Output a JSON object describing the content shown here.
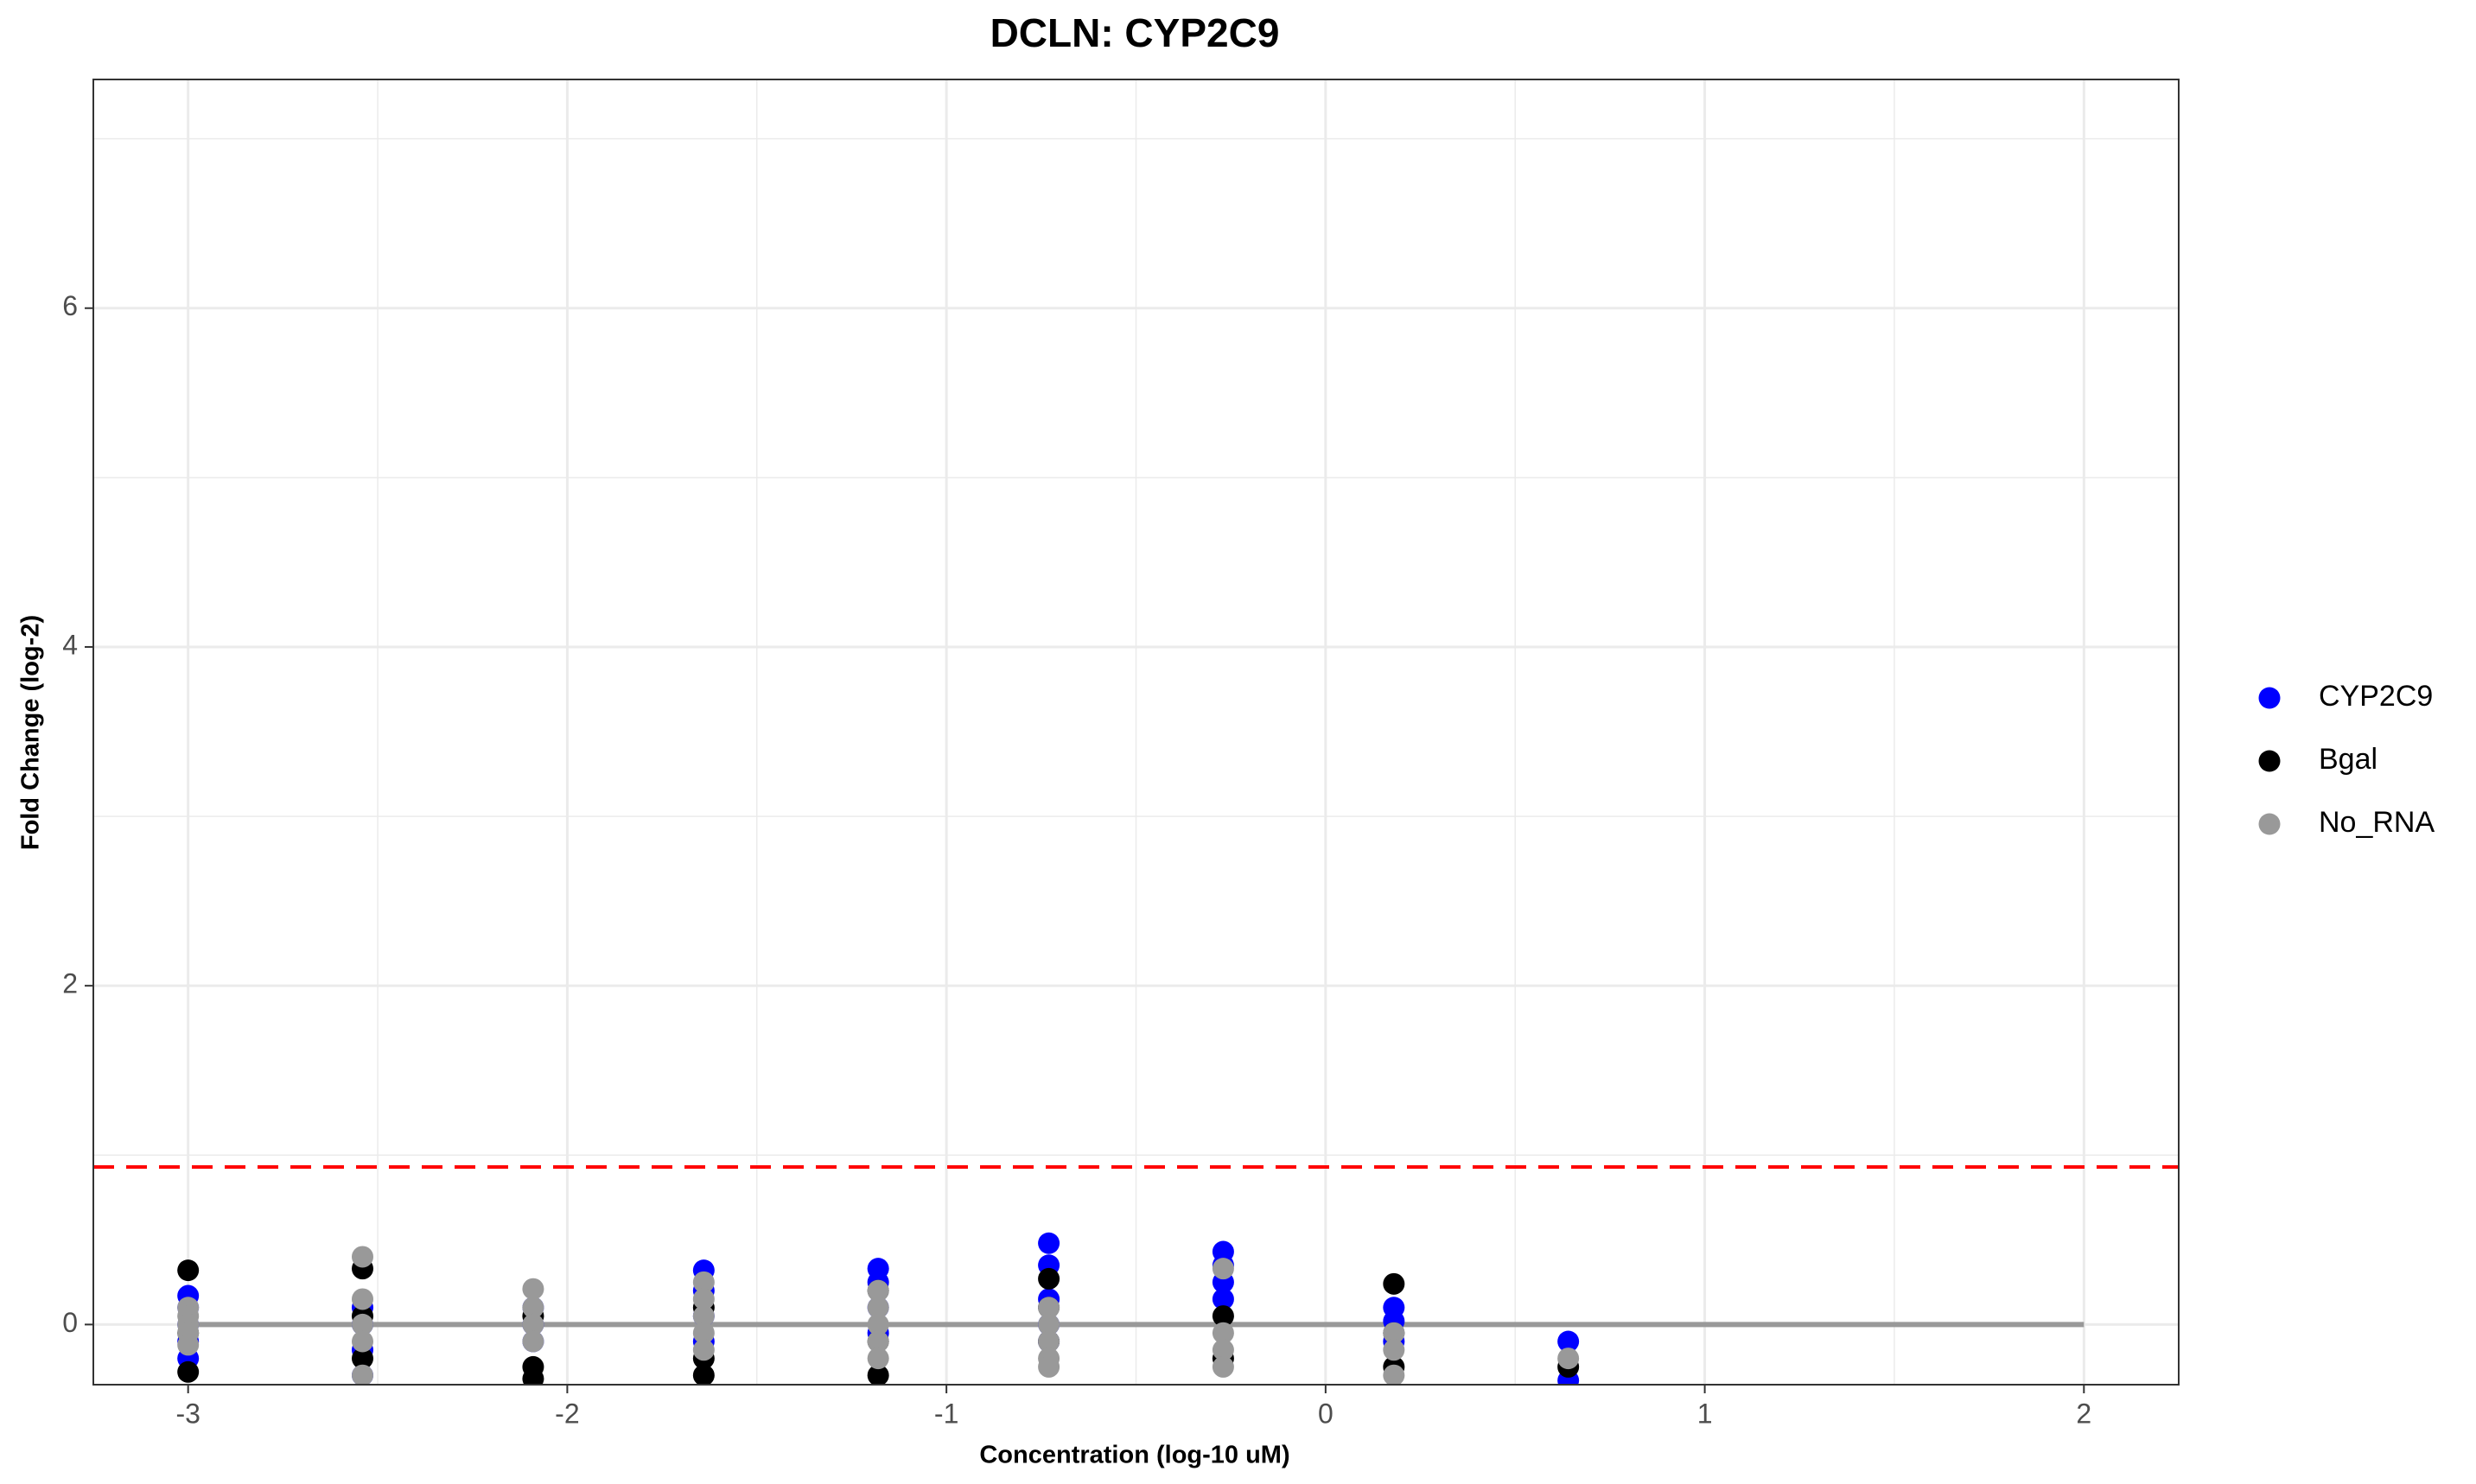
{
  "chart_data": {
    "type": "scatter",
    "title": "DCLN: CYP2C9",
    "x_label": "Concentration (log-10 uM)",
    "y_label": "Fold Change (log-2)",
    "xlim": [
      -3.25,
      2.25
    ],
    "ylim": [
      -0.355,
      7.35
    ],
    "xticks": [
      -3,
      -2,
      -1,
      0,
      1,
      2
    ],
    "yticks": [
      0,
      2,
      4,
      6
    ],
    "minor_xticks": [
      -2.5,
      -1.5,
      -0.5,
      0.5,
      1.5
    ],
    "minor_yticks": [
      1,
      3,
      5,
      7
    ],
    "grid": true,
    "legend": "right",
    "threshold": {
      "y": 0.93,
      "color": "#ff0000"
    },
    "reference_line": {
      "y": 0,
      "x": [
        -3,
        2
      ],
      "color": "#999999"
    },
    "series": [
      {
        "name": "CYP2C9",
        "color": "#0000ff",
        "x": [
          -3,
          -3,
          -3,
          -3,
          -3,
          -2.54,
          -2.54,
          -2.54,
          -2.54,
          -2.09,
          -2.09,
          -2.09,
          -1.64,
          -1.64,
          -1.64,
          -1.64,
          -1.18,
          -1.18,
          -1.18,
          -1.18,
          -0.73,
          -0.73,
          -0.73,
          -0.73,
          -0.73,
          -0.27,
          -0.27,
          -0.27,
          -0.27,
          0.18,
          0.18,
          0.18,
          0.64,
          0.64
        ],
        "values": [
          0.17,
          0.1,
          0,
          -0.1,
          -0.2,
          0.1,
          0,
          -0.15,
          -0.3,
          0.1,
          0,
          -0.1,
          0.32,
          0.2,
          0.05,
          -0.1,
          0.33,
          0.25,
          0.1,
          -0.05,
          0.48,
          0.35,
          0.15,
          0,
          -0.1,
          0.43,
          0.35,
          0.25,
          0.15,
          0.1,
          0.02,
          -0.1,
          -0.1,
          -0.33
        ]
      },
      {
        "name": "Bgal",
        "color": "#000000",
        "x": [
          -3,
          -3,
          -3,
          -2.54,
          -2.54,
          -2.54,
          -2.09,
          -2.09,
          -2.09,
          -1.64,
          -1.64,
          -1.64,
          -1.18,
          -1.18,
          -1.18,
          -0.73,
          -0.73,
          -0.73,
          -0.27,
          -0.27,
          0.18,
          0.18,
          0.18,
          0.64
        ],
        "values": [
          0.32,
          -0.05,
          -0.28,
          0.33,
          0.05,
          -0.2,
          0.05,
          -0.25,
          -0.32,
          0.1,
          -0.2,
          -0.3,
          0.2,
          -0.1,
          -0.3,
          0.27,
          0.1,
          -0.1,
          0.05,
          -0.2,
          0.24,
          -0.05,
          -0.25,
          -0.25
        ]
      },
      {
        "name": "No_RNA",
        "color": "#999999",
        "x": [
          -3,
          -3,
          -3,
          -3,
          -3,
          -2.54,
          -2.54,
          -2.54,
          -2.54,
          -2.54,
          -2.09,
          -2.09,
          -2.09,
          -2.09,
          -1.64,
          -1.64,
          -1.64,
          -1.64,
          -1.64,
          -1.18,
          -1.18,
          -1.18,
          -1.18,
          -1.18,
          -0.73,
          -0.73,
          -0.73,
          -0.73,
          -0.73,
          -0.27,
          -0.27,
          -0.27,
          -0.27,
          0.18,
          0.18,
          0.18,
          0.64
        ],
        "values": [
          0.1,
          0.05,
          0,
          -0.05,
          -0.12,
          0.4,
          0.15,
          0,
          -0.1,
          -0.3,
          0.21,
          0.1,
          0,
          -0.1,
          0.25,
          0.15,
          0.05,
          -0.05,
          -0.15,
          0.2,
          0.1,
          0,
          -0.1,
          -0.2,
          0.1,
          0,
          -0.1,
          -0.2,
          -0.25,
          0.33,
          -0.05,
          -0.15,
          -0.25,
          -0.05,
          -0.15,
          -0.3,
          -0.2
        ]
      }
    ]
  }
}
